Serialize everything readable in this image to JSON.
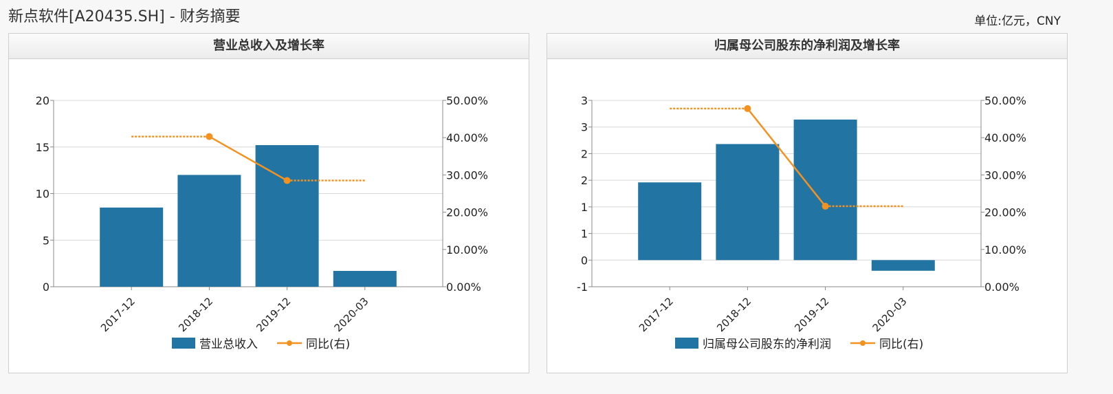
{
  "header": {
    "title": "新点软件[A20435.SH] - 财务摘要",
    "unit": "单位:亿元，CNY"
  },
  "colors": {
    "bar": "#2275a3",
    "line": "#f39221",
    "grid": "#d8d8d8",
    "axis": "#888888"
  },
  "chart_data": [
    {
      "type": "bar",
      "title": "营业总收入及增长率",
      "categories": [
        "2017-12",
        "2018-12",
        "2019-12",
        "2020-03"
      ],
      "y_left_ticks": [
        "20",
        "15",
        "10",
        "5",
        "0"
      ],
      "y_right_ticks": [
        "50.00%",
        "40.00%",
        "30.00%",
        "20.00%",
        "10.00%",
        "0.00%"
      ],
      "ylim_left": [
        0,
        20
      ],
      "ylim_right": [
        0,
        50
      ],
      "series": [
        {
          "name": "营业总收入",
          "type": "bar",
          "axis": "left",
          "values": [
            8.5,
            12.0,
            15.2,
            1.7
          ]
        },
        {
          "name": "同比(右)",
          "type": "line",
          "axis": "right",
          "values": [
            40.3,
            40.3,
            28.5,
            28.5
          ],
          "solid_segment": [
            1,
            2
          ]
        }
      ],
      "legend": "bottom-center",
      "grid": true
    },
    {
      "type": "bar",
      "title": "归属母公司股东的净利润及增长率",
      "categories": [
        "2017-12",
        "2018-12",
        "2019-12",
        "2020-03"
      ],
      "y_left_ticks": [
        "3",
        "3",
        "2",
        "2",
        "1",
        "1",
        "0",
        "-1"
      ],
      "y_right_ticks": [
        "50.00%",
        "40.00%",
        "30.00%",
        "20.00%",
        "10.00%",
        "0.00%"
      ],
      "ylim_left": [
        -0.5,
        3.0
      ],
      "ylim_right": [
        0,
        50
      ],
      "series": [
        {
          "name": "归属母公司股东的净利润",
          "type": "bar",
          "axis": "left",
          "values": [
            1.46,
            2.18,
            2.64,
            -0.2
          ]
        },
        {
          "name": "同比(右)",
          "type": "line",
          "axis": "right",
          "values": [
            47.8,
            47.8,
            21.6,
            21.6
          ],
          "solid_segment": [
            1,
            2
          ]
        }
      ],
      "legend": "bottom-center",
      "grid": true
    }
  ]
}
